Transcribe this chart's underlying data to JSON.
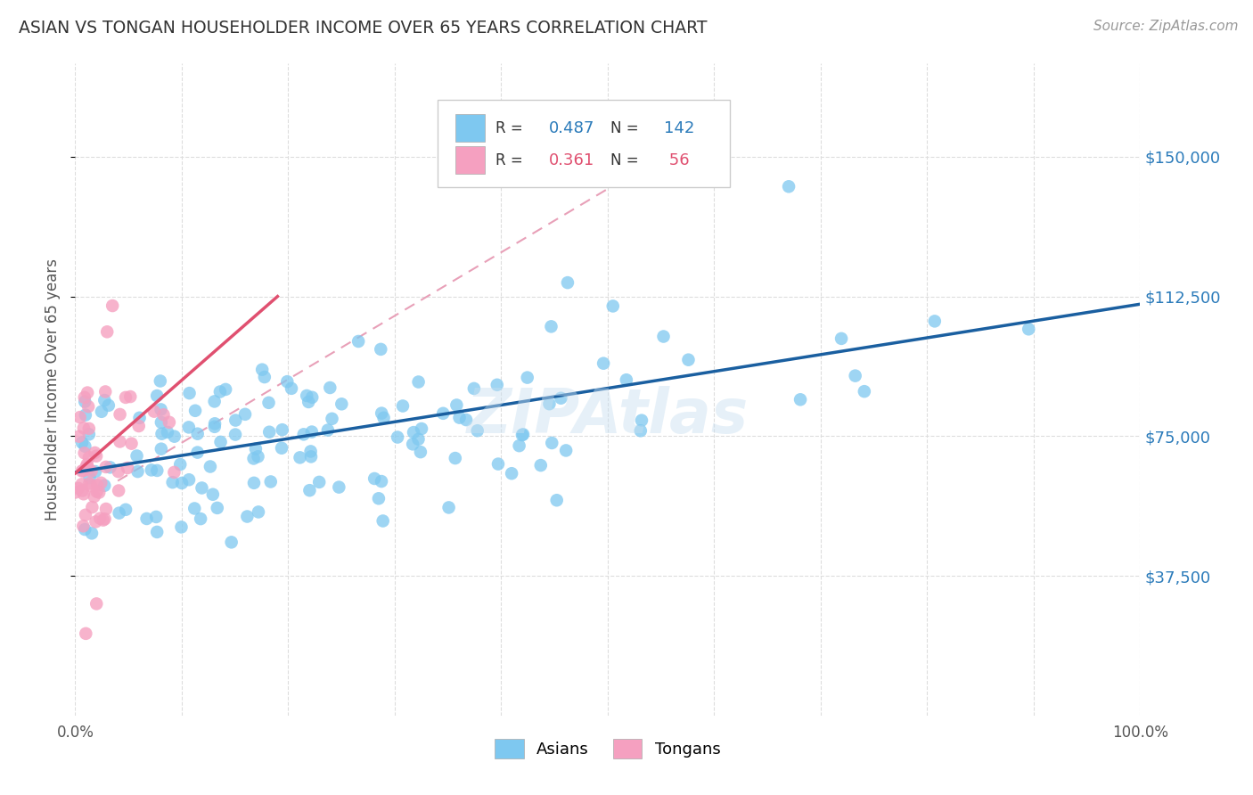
{
  "title": "ASIAN VS TONGAN HOUSEHOLDER INCOME OVER 65 YEARS CORRELATION CHART",
  "source": "Source: ZipAtlas.com",
  "ylabel": "Householder Income Over 65 years",
  "xlim": [
    0,
    1.0
  ],
  "ylim": [
    0,
    175000
  ],
  "xticklabels_positions": [
    0.0,
    1.0
  ],
  "xticklabels": [
    "0.0%",
    "100.0%"
  ],
  "ytick_values": [
    37500,
    75000,
    112500,
    150000
  ],
  "ytick_labels": [
    "$37,500",
    "$75,000",
    "$112,500",
    "$150,000"
  ],
  "watermark": "ZIPAtlas",
  "asian_color": "#7ec8f0",
  "tongan_color": "#f5a0c0",
  "legend_asian_label": "Asians",
  "legend_tongan_label": "Tongans",
  "bg_color": "#ffffff",
  "grid_color": "#dddddd",
  "title_color": "#333333",
  "axis_label_color": "#555555",
  "ytick_color": "#2b7bba",
  "regression_blue_color": "#1a5fa0",
  "regression_pink_color": "#e05070",
  "regression_dashed_color": "#e8a0b8"
}
